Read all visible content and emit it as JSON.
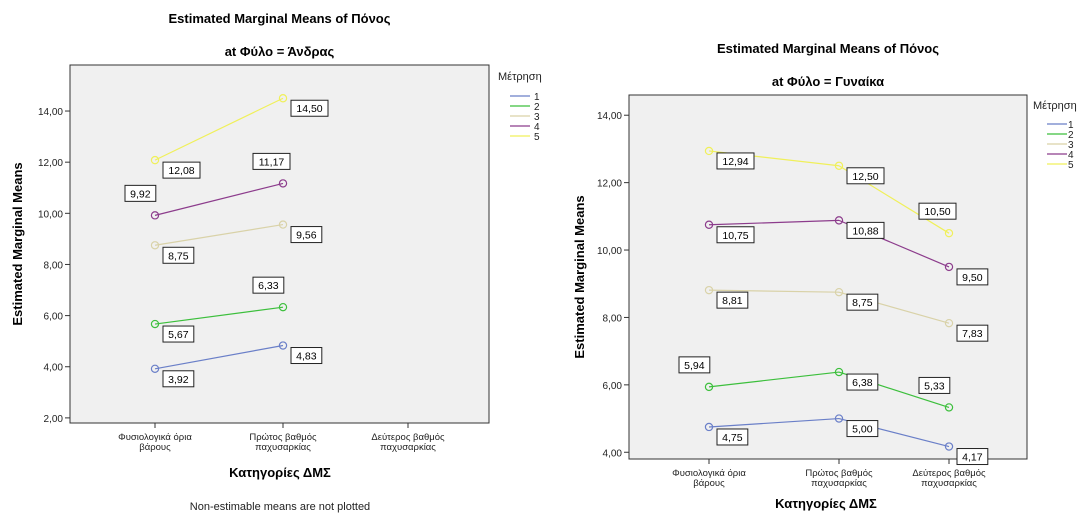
{
  "chart_data": [
    {
      "type": "line",
      "title": "Estimated Marginal Means of Πόνος",
      "subtitle": "at Φύλο = Άνδρας",
      "xlabel": "Κατηγορίες ΔΜΣ",
      "ylabel": "Estimated Marginal Means",
      "categories": [
        [
          "Φυσιολογικά όρια",
          "βάρους"
        ],
        [
          "Πρώτος βαθμός",
          "παχυσαρκίας"
        ],
        [
          "Δεύτερος βαθμός",
          "παχυσαρκίας"
        ]
      ],
      "ylim": [
        1.8,
        15.8
      ],
      "yticks": [
        "2,00",
        "4,00",
        "6,00",
        "8,00",
        "10,00",
        "12,00",
        "14,00"
      ],
      "ytick_values": [
        2,
        4,
        6,
        8,
        10,
        12,
        14
      ],
      "legend_title": "Μέτρηση",
      "legend_position": "right",
      "footnote": "Non-estimable means are not plotted",
      "series": [
        {
          "name": "1",
          "color": "#6a7fc8",
          "values": [
            3.92,
            4.83,
            null
          ],
          "labels": [
            "3,92",
            "4,83",
            null
          ]
        },
        {
          "name": "2",
          "color": "#3cbf3c",
          "values": [
            5.67,
            6.33,
            null
          ],
          "labels": [
            "5,67",
            "6,33",
            null
          ]
        },
        {
          "name": "3",
          "color": "#d9d2a8",
          "values": [
            8.75,
            9.56,
            null
          ],
          "labels": [
            "8,75",
            "9,56",
            null
          ]
        },
        {
          "name": "4",
          "color": "#8c3c8c",
          "values": [
            9.92,
            11.17,
            null
          ],
          "labels": [
            "9,92",
            "11,17",
            null
          ]
        },
        {
          "name": "5",
          "color": "#f0f05a",
          "values": [
            12.08,
            14.5,
            null
          ],
          "labels": [
            "12,08",
            "14,50",
            null
          ]
        }
      ]
    },
    {
      "type": "line",
      "title": "Estimated Marginal Means of Πόνος",
      "subtitle": "at Φύλο = Γυναίκα",
      "xlabel": "Κατηγορίες ΔΜΣ",
      "ylabel": "Estimated Marginal Means",
      "categories": [
        [
          "Φυσιολογικά όρια",
          "βάρους"
        ],
        [
          "Πρώτος βαθμός",
          "παχυσαρκίας"
        ],
        [
          "Δεύτερος βαθμός",
          "παχυσαρκίας"
        ]
      ],
      "ylim": [
        3.8,
        14.6
      ],
      "yticks": [
        "4,00",
        "6,00",
        "8,00",
        "10,00",
        "12,00",
        "14,00"
      ],
      "ytick_values": [
        4,
        6,
        8,
        10,
        12,
        14
      ],
      "legend_title": "Μέτρηση",
      "legend_position": "right",
      "footnote": "",
      "series": [
        {
          "name": "1",
          "color": "#6a7fc8",
          "values": [
            4.75,
            5.0,
            4.17
          ],
          "labels": [
            "4,75",
            "5,00",
            "4,17"
          ]
        },
        {
          "name": "2",
          "color": "#3cbf3c",
          "values": [
            5.94,
            6.38,
            5.33
          ],
          "labels": [
            "5,94",
            "6,38",
            "5,33"
          ]
        },
        {
          "name": "3",
          "color": "#d9d2a8",
          "values": [
            8.81,
            8.75,
            7.83
          ],
          "labels": [
            "8,81",
            "8,75",
            "7,83"
          ]
        },
        {
          "name": "4",
          "color": "#8c3c8c",
          "values": [
            10.75,
            10.88,
            9.5
          ],
          "labels": [
            "10,75",
            "10,88",
            "9,50"
          ]
        },
        {
          "name": "5",
          "color": "#f0f05a",
          "values": [
            12.94,
            12.5,
            10.5
          ],
          "labels": [
            "12,94",
            "12,50",
            "10,50"
          ]
        }
      ]
    }
  ]
}
